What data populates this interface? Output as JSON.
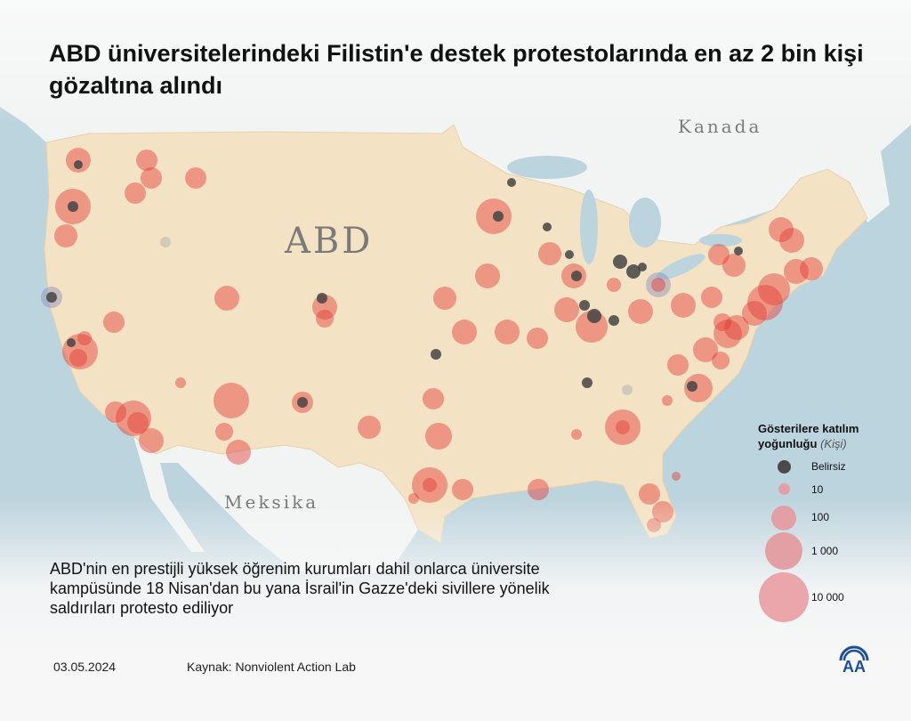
{
  "title": "ABD üniversitelerindeki Filistin'e destek protestolarında en az 2 bin kişi gözaltına alındı",
  "map_labels": {
    "usa": "ABD",
    "canada": "Kanada",
    "mexico": "Meksika"
  },
  "description": "ABD'nin en prestijli yüksek öğrenim kurumları dahil onlarca üniversite kampüsünde 18 Nisan'dan bu yana İsrail'in Gazze'deki sivillere yönelik saldırıları protesto ediliyor",
  "legend": {
    "title": "Gösterilere katılım yoğunluğu",
    "unit": "(Kişi)",
    "items": [
      {
        "label": "Belirsiz",
        "color": "#4a4a4a"
      },
      {
        "label": "10",
        "color": "#e3a0a4"
      },
      {
        "label": "100",
        "color": "#e3a0a4"
      },
      {
        "label": "1 000",
        "color": "#e3a0a4"
      },
      {
        "label": "10 000",
        "color": "#e3a0a4"
      }
    ]
  },
  "footer": {
    "date": "03.05.2024",
    "source": "Kaynak: Nonviolent Action Lab",
    "logo": "AA"
  },
  "colors": {
    "land_us": "#f3e2c3",
    "water": "#bcd4dd",
    "protest": "#e53935",
    "unknown": "#444444",
    "logo": "#1a4fa0"
  }
}
